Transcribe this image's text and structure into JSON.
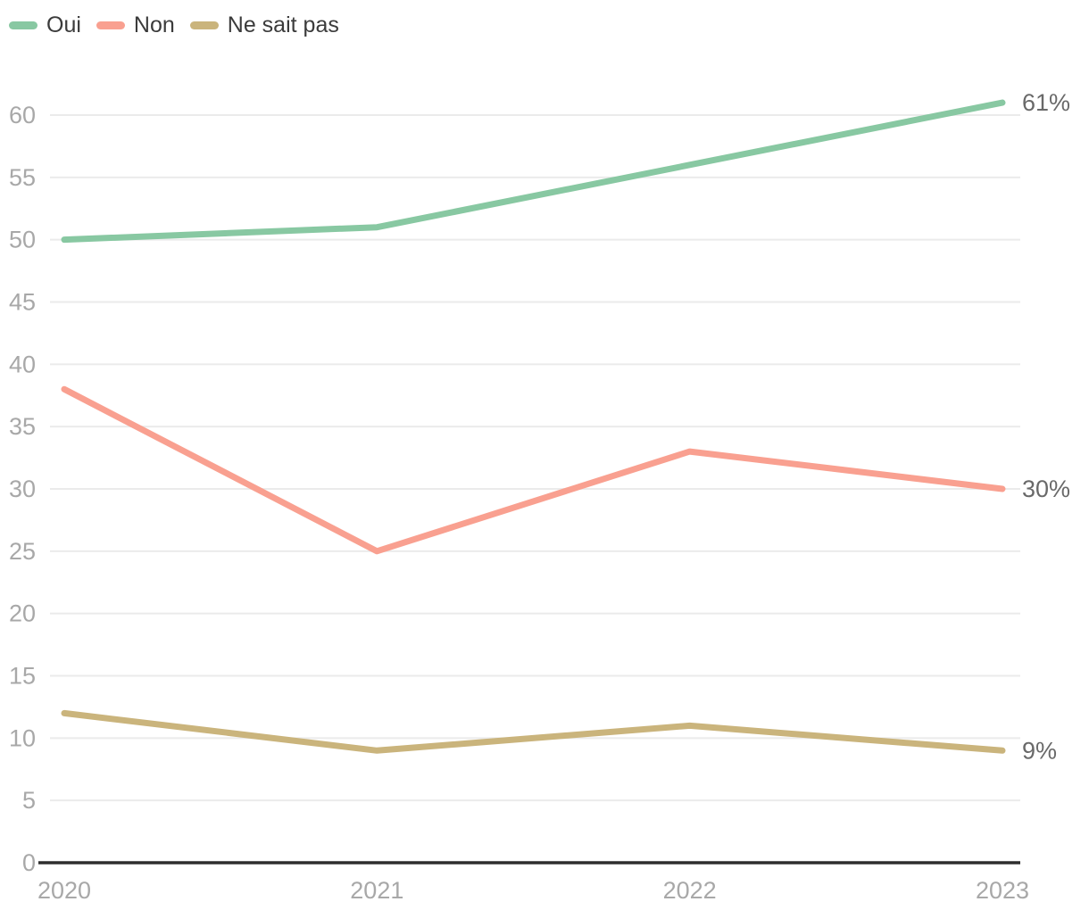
{
  "colors": {
    "background": "#ffffff",
    "grid": "#ebebeb",
    "axis": "#2e2e2e",
    "tick_label": "#a8a8a8",
    "end_label": "#696969",
    "legend_text": "#3b3b3b",
    "oui": "#88c8a2",
    "non": "#f9a090",
    "ne_sait_pas": "#cab47c"
  },
  "legend": {
    "items": [
      {
        "label": "Oui",
        "color": "#88c8a2"
      },
      {
        "label": "Non",
        "color": "#f9a090"
      },
      {
        "label": "Ne sait pas",
        "color": "#cab47c"
      }
    ]
  },
  "chart_data": {
    "type": "line",
    "title": "",
    "xlabel": "",
    "ylabel": "",
    "categories": [
      "2020",
      "2021",
      "2022",
      "2023"
    ],
    "series": [
      {
        "name": "Oui",
        "values": [
          50,
          51,
          56,
          61
        ],
        "color": "#88c8a2",
        "end_label": "61%"
      },
      {
        "name": "Non",
        "values": [
          38,
          25,
          33,
          30
        ],
        "color": "#f9a090",
        "end_label": "30%"
      },
      {
        "name": "Ne sait pas",
        "values": [
          12,
          9,
          11,
          9
        ],
        "color": "#cab47c",
        "end_label": "9%"
      }
    ],
    "ylim": [
      0,
      62
    ],
    "yticks": [
      0,
      5,
      10,
      15,
      20,
      25,
      30,
      35,
      40,
      45,
      50,
      55,
      60
    ],
    "ytick_labels": [
      "0",
      "5",
      "10",
      "15",
      "20",
      "25",
      "30",
      "35",
      "40",
      "45",
      "50",
      "55",
      "60"
    ],
    "grid": "horizontal",
    "legend_position": "top-left"
  }
}
